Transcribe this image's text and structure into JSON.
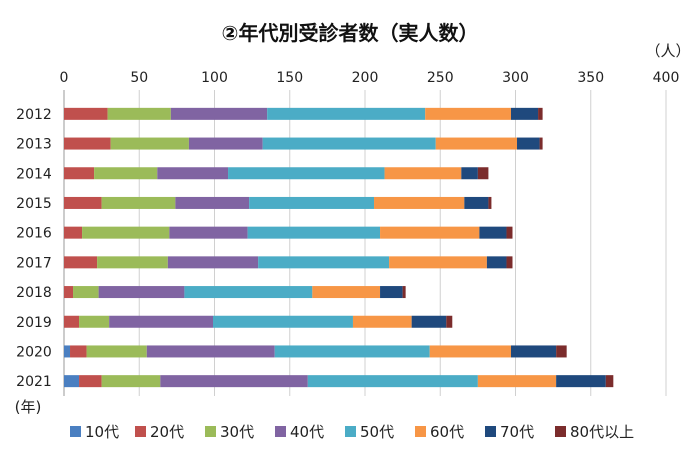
{
  "chart_data": {
    "type": "bar",
    "orientation": "horizontal",
    "stacked": true,
    "title": "②年代別受診者数（実人数）",
    "x_unit": "（人）",
    "y_unit": "(年)",
    "xlim": [
      0,
      400
    ],
    "x_ticks": [
      "0",
      "50",
      "100",
      "150",
      "200",
      "250",
      "300",
      "350",
      "400"
    ],
    "grid": true,
    "legend_position": "bottom",
    "categories": [
      "2012",
      "2013",
      "2014",
      "2015",
      "2016",
      "2017",
      "2018",
      "2019",
      "2020",
      "2021"
    ],
    "series": [
      {
        "name": "10代",
        "color": "#4a7fc1",
        "values": [
          0,
          0,
          0,
          0,
          0,
          0,
          0,
          0,
          4,
          10
        ]
      },
      {
        "name": "20代",
        "color": "#c0504d",
        "values": [
          29,
          31,
          20,
          25,
          12,
          22,
          6,
          10,
          11,
          15
        ]
      },
      {
        "name": "30代",
        "color": "#9bbb59",
        "values": [
          42,
          52,
          42,
          49,
          58,
          47,
          17,
          20,
          40,
          39
        ]
      },
      {
        "name": "40代",
        "color": "#8064a2",
        "values": [
          64,
          49,
          47,
          49,
          52,
          60,
          57,
          69,
          85,
          98
        ]
      },
      {
        "name": "50代",
        "color": "#4bacc6",
        "values": [
          105,
          115,
          104,
          83,
          88,
          87,
          85,
          93,
          103,
          113
        ]
      },
      {
        "name": "60代",
        "color": "#f79646",
        "values": [
          57,
          54,
          51,
          60,
          66,
          65,
          45,
          39,
          54,
          52
        ]
      },
      {
        "name": "70代",
        "color": "#1f497d",
        "values": [
          18,
          15,
          11,
          16,
          18,
          13,
          15,
          23,
          30,
          33
        ]
      },
      {
        "name": "80代以上",
        "color": "#7b2c2c",
        "values": [
          3,
          2,
          7,
          2,
          4,
          4,
          2,
          4,
          7,
          5
        ]
      }
    ]
  }
}
